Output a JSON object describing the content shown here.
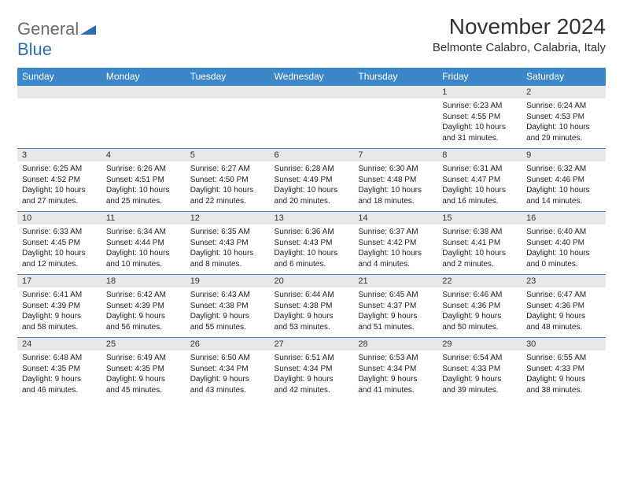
{
  "logo": {
    "part1": "General",
    "part2": "Blue"
  },
  "title": "November 2024",
  "location": "Belmonte Calabro, Calabria, Italy",
  "colors": {
    "header_bg": "#3b87c8",
    "header_text": "#ffffff",
    "num_bg": "#e8e8e8",
    "cell_text": "#222222",
    "logo_gray": "#6b6b6b",
    "logo_blue": "#2a6fb5"
  },
  "daysOfWeek": [
    "Sunday",
    "Monday",
    "Tuesday",
    "Wednesday",
    "Thursday",
    "Friday",
    "Saturday"
  ],
  "weeks": [
    {
      "nums": [
        "",
        "",
        "",
        "",
        "",
        "1",
        "2"
      ],
      "cells": [
        null,
        null,
        null,
        null,
        null,
        {
          "sr": "Sunrise: 6:23 AM",
          "ss": "Sunset: 4:55 PM",
          "d1": "Daylight: 10 hours",
          "d2": "and 31 minutes."
        },
        {
          "sr": "Sunrise: 6:24 AM",
          "ss": "Sunset: 4:53 PM",
          "d1": "Daylight: 10 hours",
          "d2": "and 29 minutes."
        }
      ]
    },
    {
      "nums": [
        "3",
        "4",
        "5",
        "6",
        "7",
        "8",
        "9"
      ],
      "cells": [
        {
          "sr": "Sunrise: 6:25 AM",
          "ss": "Sunset: 4:52 PM",
          "d1": "Daylight: 10 hours",
          "d2": "and 27 minutes."
        },
        {
          "sr": "Sunrise: 6:26 AM",
          "ss": "Sunset: 4:51 PM",
          "d1": "Daylight: 10 hours",
          "d2": "and 25 minutes."
        },
        {
          "sr": "Sunrise: 6:27 AM",
          "ss": "Sunset: 4:50 PM",
          "d1": "Daylight: 10 hours",
          "d2": "and 22 minutes."
        },
        {
          "sr": "Sunrise: 6:28 AM",
          "ss": "Sunset: 4:49 PM",
          "d1": "Daylight: 10 hours",
          "d2": "and 20 minutes."
        },
        {
          "sr": "Sunrise: 6:30 AM",
          "ss": "Sunset: 4:48 PM",
          "d1": "Daylight: 10 hours",
          "d2": "and 18 minutes."
        },
        {
          "sr": "Sunrise: 6:31 AM",
          "ss": "Sunset: 4:47 PM",
          "d1": "Daylight: 10 hours",
          "d2": "and 16 minutes."
        },
        {
          "sr": "Sunrise: 6:32 AM",
          "ss": "Sunset: 4:46 PM",
          "d1": "Daylight: 10 hours",
          "d2": "and 14 minutes."
        }
      ]
    },
    {
      "nums": [
        "10",
        "11",
        "12",
        "13",
        "14",
        "15",
        "16"
      ],
      "cells": [
        {
          "sr": "Sunrise: 6:33 AM",
          "ss": "Sunset: 4:45 PM",
          "d1": "Daylight: 10 hours",
          "d2": "and 12 minutes."
        },
        {
          "sr": "Sunrise: 6:34 AM",
          "ss": "Sunset: 4:44 PM",
          "d1": "Daylight: 10 hours",
          "d2": "and 10 minutes."
        },
        {
          "sr": "Sunrise: 6:35 AM",
          "ss": "Sunset: 4:43 PM",
          "d1": "Daylight: 10 hours",
          "d2": "and 8 minutes."
        },
        {
          "sr": "Sunrise: 6:36 AM",
          "ss": "Sunset: 4:43 PM",
          "d1": "Daylight: 10 hours",
          "d2": "and 6 minutes."
        },
        {
          "sr": "Sunrise: 6:37 AM",
          "ss": "Sunset: 4:42 PM",
          "d1": "Daylight: 10 hours",
          "d2": "and 4 minutes."
        },
        {
          "sr": "Sunrise: 6:38 AM",
          "ss": "Sunset: 4:41 PM",
          "d1": "Daylight: 10 hours",
          "d2": "and 2 minutes."
        },
        {
          "sr": "Sunrise: 6:40 AM",
          "ss": "Sunset: 4:40 PM",
          "d1": "Daylight: 10 hours",
          "d2": "and 0 minutes."
        }
      ]
    },
    {
      "nums": [
        "17",
        "18",
        "19",
        "20",
        "21",
        "22",
        "23"
      ],
      "cells": [
        {
          "sr": "Sunrise: 6:41 AM",
          "ss": "Sunset: 4:39 PM",
          "d1": "Daylight: 9 hours",
          "d2": "and 58 minutes."
        },
        {
          "sr": "Sunrise: 6:42 AM",
          "ss": "Sunset: 4:39 PM",
          "d1": "Daylight: 9 hours",
          "d2": "and 56 minutes."
        },
        {
          "sr": "Sunrise: 6:43 AM",
          "ss": "Sunset: 4:38 PM",
          "d1": "Daylight: 9 hours",
          "d2": "and 55 minutes."
        },
        {
          "sr": "Sunrise: 6:44 AM",
          "ss": "Sunset: 4:38 PM",
          "d1": "Daylight: 9 hours",
          "d2": "and 53 minutes."
        },
        {
          "sr": "Sunrise: 6:45 AM",
          "ss": "Sunset: 4:37 PM",
          "d1": "Daylight: 9 hours",
          "d2": "and 51 minutes."
        },
        {
          "sr": "Sunrise: 6:46 AM",
          "ss": "Sunset: 4:36 PM",
          "d1": "Daylight: 9 hours",
          "d2": "and 50 minutes."
        },
        {
          "sr": "Sunrise: 6:47 AM",
          "ss": "Sunset: 4:36 PM",
          "d1": "Daylight: 9 hours",
          "d2": "and 48 minutes."
        }
      ]
    },
    {
      "nums": [
        "24",
        "25",
        "26",
        "27",
        "28",
        "29",
        "30"
      ],
      "cells": [
        {
          "sr": "Sunrise: 6:48 AM",
          "ss": "Sunset: 4:35 PM",
          "d1": "Daylight: 9 hours",
          "d2": "and 46 minutes."
        },
        {
          "sr": "Sunrise: 6:49 AM",
          "ss": "Sunset: 4:35 PM",
          "d1": "Daylight: 9 hours",
          "d2": "and 45 minutes."
        },
        {
          "sr": "Sunrise: 6:50 AM",
          "ss": "Sunset: 4:34 PM",
          "d1": "Daylight: 9 hours",
          "d2": "and 43 minutes."
        },
        {
          "sr": "Sunrise: 6:51 AM",
          "ss": "Sunset: 4:34 PM",
          "d1": "Daylight: 9 hours",
          "d2": "and 42 minutes."
        },
        {
          "sr": "Sunrise: 6:53 AM",
          "ss": "Sunset: 4:34 PM",
          "d1": "Daylight: 9 hours",
          "d2": "and 41 minutes."
        },
        {
          "sr": "Sunrise: 6:54 AM",
          "ss": "Sunset: 4:33 PM",
          "d1": "Daylight: 9 hours",
          "d2": "and 39 minutes."
        },
        {
          "sr": "Sunrise: 6:55 AM",
          "ss": "Sunset: 4:33 PM",
          "d1": "Daylight: 9 hours",
          "d2": "and 38 minutes."
        }
      ]
    }
  ]
}
